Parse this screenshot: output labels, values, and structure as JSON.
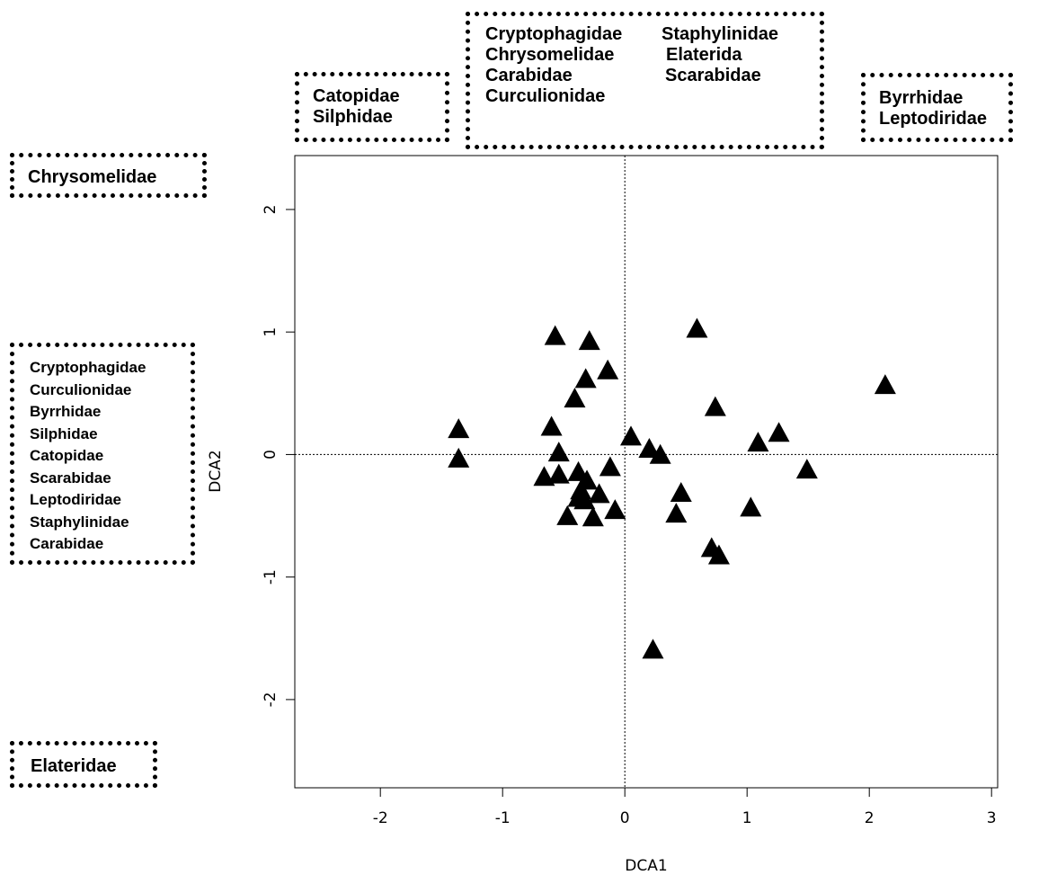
{
  "chart_data": {
    "type": "scatter",
    "xlabel": "DCA1",
    "ylabel": "DCA2",
    "xlim": [
      -2.7,
      3.05
    ],
    "ylim": [
      -2.72,
      2.44
    ],
    "xticks": [
      "-2",
      "-1",
      "0",
      "1",
      "2",
      "3"
    ],
    "xtick_values": [
      -2,
      -1,
      0,
      1,
      2,
      3
    ],
    "yticks": [
      "-2",
      "-1",
      "0",
      "1",
      "2"
    ],
    "ytick_values": [
      -2,
      -1,
      0,
      1,
      2
    ],
    "reference_lines": {
      "x": 0,
      "y": 0
    },
    "marker": "filled-triangle",
    "series": [
      {
        "x": [
          -1.36,
          -1.36,
          -0.6,
          -0.54,
          -0.57,
          -0.66,
          -0.54,
          -0.29,
          -0.32,
          -0.14,
          -0.41,
          -0.38,
          -0.31,
          -0.36,
          -0.33,
          -0.38,
          -0.47,
          -0.26,
          -0.21,
          -0.12,
          -0.08,
          0.05,
          0.2,
          0.29,
          0.59,
          0.74,
          0.46,
          0.42,
          1.09,
          1.26,
          1.49,
          1.03,
          0.71,
          0.77,
          2.13,
          0.23
        ],
        "y": [
          0.2,
          -0.04,
          0.22,
          0.01,
          0.96,
          -0.19,
          -0.17,
          0.92,
          0.61,
          0.68,
          0.45,
          -0.15,
          -0.22,
          -0.3,
          -0.38,
          -0.36,
          -0.51,
          -0.52,
          -0.33,
          -0.11,
          -0.46,
          0.14,
          0.04,
          -0.01,
          1.02,
          0.38,
          -0.32,
          -0.49,
          0.09,
          0.17,
          -0.13,
          -0.44,
          -0.77,
          -0.83,
          0.56,
          -1.6
        ]
      }
    ]
  },
  "annotations": {
    "left_top": {
      "lines": [
        "Chrysomelidae"
      ]
    },
    "left_mid": {
      "lines": [
        "Cryptophagidae",
        "Curculionidae",
        "Byrrhidae",
        "Silphidae",
        "Catopidae",
        "Scarabidae",
        "Leptodiridae",
        "Staphylinidae",
        "Carabidae"
      ]
    },
    "left_bottom": {
      "lines": [
        "Elateridae"
      ]
    },
    "top_left": {
      "lines": [
        "Catopidae",
        "Silphidae"
      ]
    },
    "top_center": {
      "col1": [
        "Cryptophagidae",
        "Chrysomelidae",
        "Carabidae",
        "Curculionidae"
      ],
      "col2": [
        "Staphylinidae",
        "Elaterida",
        "Scarabidae"
      ]
    },
    "top_right": {
      "lines": [
        "Byrrhidae",
        "Leptodiridae"
      ]
    }
  }
}
